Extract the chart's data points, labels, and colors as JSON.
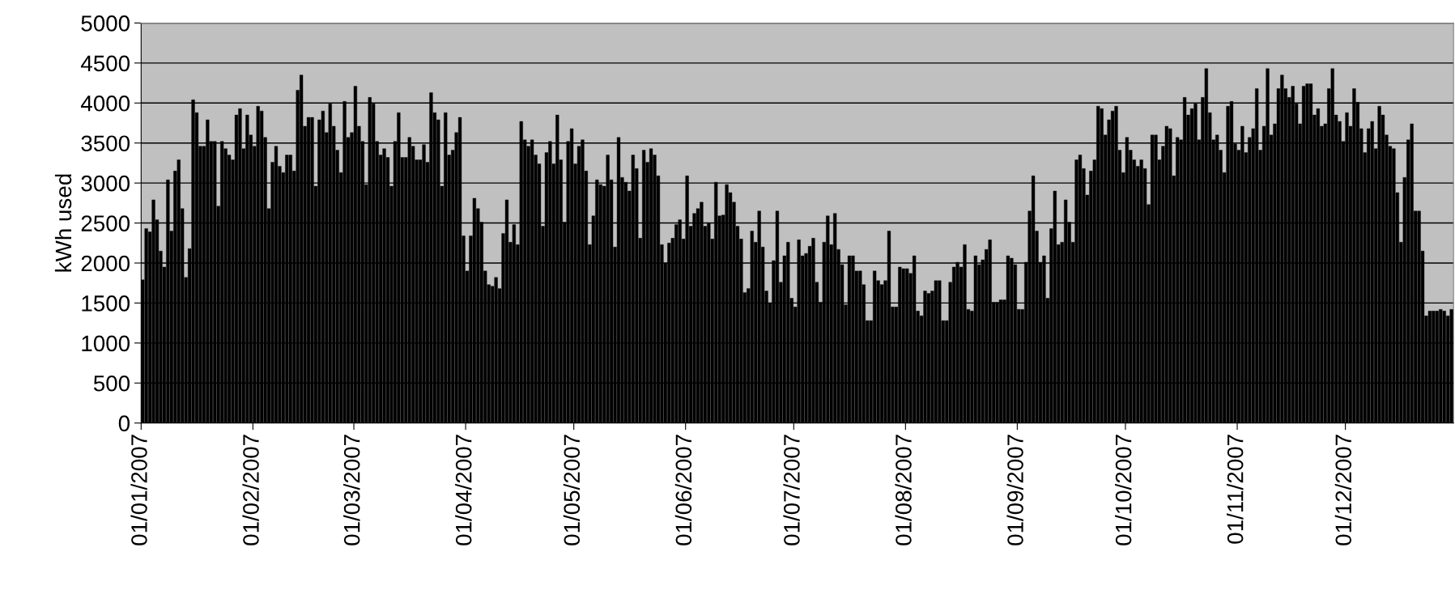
{
  "chart_data": {
    "type": "bar",
    "ylabel": "kWh used",
    "color": "#000000",
    "x": [
      "2007-01-01",
      "2007-01-02",
      "2007-01-03",
      "2007-01-04",
      "2007-01-05",
      "2007-01-06",
      "2007-01-07",
      "2007-01-08",
      "2007-01-09",
      "2007-01-10",
      "2007-01-11",
      "2007-01-12",
      "2007-01-13",
      "2007-01-14",
      "2007-01-15",
      "2007-01-16",
      "2007-01-17",
      "2007-01-18",
      "2007-01-19",
      "2007-01-20",
      "2007-01-21",
      "2007-01-22",
      "2007-01-23",
      "2007-01-24",
      "2007-01-25",
      "2007-01-26",
      "2007-01-27",
      "2007-01-28",
      "2007-01-29",
      "2007-01-30",
      "2007-01-31",
      "2007-02-01",
      "2007-02-02",
      "2007-02-03",
      "2007-02-04",
      "2007-02-05",
      "2007-02-06",
      "2007-02-07",
      "2007-02-08",
      "2007-02-09",
      "2007-02-10",
      "2007-02-11",
      "2007-02-12",
      "2007-02-13",
      "2007-02-14",
      "2007-02-15",
      "2007-02-16",
      "2007-02-17",
      "2007-02-18",
      "2007-02-19",
      "2007-02-20",
      "2007-02-21",
      "2007-02-22",
      "2007-02-23",
      "2007-02-24",
      "2007-02-25",
      "2007-02-26",
      "2007-02-27",
      "2007-02-28",
      "2007-03-01",
      "2007-03-02",
      "2007-03-03",
      "2007-03-04",
      "2007-03-05",
      "2007-03-06",
      "2007-03-07",
      "2007-03-08",
      "2007-03-09",
      "2007-03-10",
      "2007-03-11",
      "2007-03-12",
      "2007-03-13",
      "2007-03-14",
      "2007-03-15",
      "2007-03-16",
      "2007-03-17",
      "2007-03-18",
      "2007-03-19",
      "2007-03-20",
      "2007-03-21",
      "2007-03-22",
      "2007-03-23",
      "2007-03-24",
      "2007-03-25",
      "2007-03-26",
      "2007-03-27",
      "2007-03-28",
      "2007-03-29",
      "2007-03-30",
      "2007-03-31",
      "2007-04-01",
      "2007-04-02",
      "2007-04-03",
      "2007-04-04",
      "2007-04-05",
      "2007-04-06",
      "2007-04-07",
      "2007-04-08",
      "2007-04-09",
      "2007-04-10",
      "2007-04-11",
      "2007-04-12",
      "2007-04-13",
      "2007-04-14",
      "2007-04-15",
      "2007-04-16",
      "2007-04-17",
      "2007-04-18",
      "2007-04-19",
      "2007-04-20",
      "2007-04-21",
      "2007-04-22",
      "2007-04-23",
      "2007-04-24",
      "2007-04-25",
      "2007-04-26",
      "2007-04-27",
      "2007-04-28",
      "2007-04-29",
      "2007-04-30",
      "2007-05-01",
      "2007-05-02",
      "2007-05-03",
      "2007-05-04",
      "2007-05-05",
      "2007-05-06",
      "2007-05-07",
      "2007-05-08",
      "2007-05-09",
      "2007-05-10",
      "2007-05-11",
      "2007-05-12",
      "2007-05-13",
      "2007-05-14",
      "2007-05-15",
      "2007-05-16",
      "2007-05-17",
      "2007-05-18",
      "2007-05-19",
      "2007-05-20",
      "2007-05-21",
      "2007-05-22",
      "2007-05-23",
      "2007-05-24",
      "2007-05-25",
      "2007-05-26",
      "2007-05-27",
      "2007-05-28",
      "2007-05-29",
      "2007-05-30",
      "2007-05-31",
      "2007-06-01",
      "2007-06-02",
      "2007-06-03",
      "2007-06-04",
      "2007-06-05",
      "2007-06-06",
      "2007-06-07",
      "2007-06-08",
      "2007-06-09",
      "2007-06-10",
      "2007-06-11",
      "2007-06-12",
      "2007-06-13",
      "2007-06-14",
      "2007-06-15",
      "2007-06-16",
      "2007-06-17",
      "2007-06-18",
      "2007-06-19",
      "2007-06-20",
      "2007-06-21",
      "2007-06-22",
      "2007-06-23",
      "2007-06-24",
      "2007-06-25",
      "2007-06-26",
      "2007-06-27",
      "2007-06-28",
      "2007-06-29",
      "2007-06-30",
      "2007-07-01",
      "2007-07-02",
      "2007-07-03",
      "2007-07-04",
      "2007-07-05",
      "2007-07-06",
      "2007-07-07",
      "2007-07-08",
      "2007-07-09",
      "2007-07-10",
      "2007-07-11",
      "2007-07-12",
      "2007-07-13",
      "2007-07-14",
      "2007-07-15",
      "2007-07-16",
      "2007-07-17",
      "2007-07-18",
      "2007-07-19",
      "2007-07-20",
      "2007-07-21",
      "2007-07-22",
      "2007-07-23",
      "2007-07-24",
      "2007-07-25",
      "2007-07-26",
      "2007-07-27",
      "2007-07-28",
      "2007-07-29",
      "2007-07-30",
      "2007-07-31",
      "2007-08-01",
      "2007-08-02",
      "2007-08-03",
      "2007-08-04",
      "2007-08-05",
      "2007-08-06",
      "2007-08-07",
      "2007-08-08",
      "2007-08-09",
      "2007-08-10",
      "2007-08-11",
      "2007-08-12",
      "2007-08-13",
      "2007-08-14",
      "2007-08-15",
      "2007-08-16",
      "2007-08-17",
      "2007-08-18",
      "2007-08-19",
      "2007-08-20",
      "2007-08-21",
      "2007-08-22",
      "2007-08-23",
      "2007-08-24",
      "2007-08-25",
      "2007-08-26",
      "2007-08-27",
      "2007-08-28",
      "2007-08-29",
      "2007-08-30",
      "2007-08-31",
      "2007-09-01",
      "2007-09-02",
      "2007-09-03",
      "2007-09-04",
      "2007-09-05",
      "2007-09-06",
      "2007-09-07",
      "2007-09-08",
      "2007-09-09",
      "2007-09-10",
      "2007-09-11",
      "2007-09-12",
      "2007-09-13",
      "2007-09-14",
      "2007-09-15",
      "2007-09-16",
      "2007-09-17",
      "2007-09-18",
      "2007-09-19",
      "2007-09-20",
      "2007-09-21",
      "2007-09-22",
      "2007-09-23",
      "2007-09-24",
      "2007-09-25",
      "2007-09-26",
      "2007-09-27",
      "2007-09-28",
      "2007-09-29",
      "2007-09-30",
      "2007-10-01",
      "2007-10-02",
      "2007-10-03",
      "2007-10-04",
      "2007-10-05",
      "2007-10-06",
      "2007-10-07",
      "2007-10-08",
      "2007-10-09",
      "2007-10-10",
      "2007-10-11",
      "2007-10-12",
      "2007-10-13",
      "2007-10-14",
      "2007-10-15",
      "2007-10-16",
      "2007-10-17",
      "2007-10-18",
      "2007-10-19",
      "2007-10-20",
      "2007-10-21",
      "2007-10-22",
      "2007-10-23",
      "2007-10-24",
      "2007-10-25",
      "2007-10-26",
      "2007-10-27",
      "2007-10-28",
      "2007-10-29",
      "2007-10-30",
      "2007-10-31",
      "2007-11-01",
      "2007-11-02",
      "2007-11-03",
      "2007-11-04",
      "2007-11-05",
      "2007-11-06",
      "2007-11-07",
      "2007-11-08",
      "2007-11-09",
      "2007-11-10",
      "2007-11-11",
      "2007-11-12",
      "2007-11-13",
      "2007-11-14",
      "2007-11-15",
      "2007-11-16",
      "2007-11-17",
      "2007-11-18",
      "2007-11-19",
      "2007-11-20",
      "2007-11-21",
      "2007-11-22",
      "2007-11-23",
      "2007-11-24",
      "2007-11-25",
      "2007-11-26",
      "2007-11-27",
      "2007-11-28",
      "2007-11-29",
      "2007-11-30",
      "2007-12-01",
      "2007-12-02",
      "2007-12-03",
      "2007-12-04",
      "2007-12-05",
      "2007-12-06",
      "2007-12-07",
      "2007-12-08",
      "2007-12-09",
      "2007-12-10",
      "2007-12-11",
      "2007-12-12",
      "2007-12-13",
      "2007-12-14",
      "2007-12-15",
      "2007-12-16",
      "2007-12-17",
      "2007-12-18",
      "2007-12-19",
      "2007-12-20",
      "2007-12-21",
      "2007-12-22",
      "2007-12-23",
      "2007-12-24",
      "2007-12-25",
      "2007-12-26",
      "2007-12-27",
      "2007-12-28",
      "2007-12-29",
      "2007-12-30"
    ],
    "values": [
      1790,
      2430,
      2390,
      2790,
      2540,
      2150,
      1950,
      3040,
      2400,
      3150,
      3290,
      2680,
      1820,
      2180,
      4040,
      3880,
      3460,
      3460,
      3790,
      3520,
      3520,
      2710,
      3520,
      3430,
      3350,
      3290,
      3850,
      3930,
      3430,
      3850,
      3600,
      3460,
      3960,
      3900,
      3570,
      2680,
      3260,
      3460,
      3210,
      3130,
      3350,
      3350,
      3150,
      4160,
      4350,
      3710,
      3820,
      3820,
      2960,
      3790,
      3900,
      3630,
      3990,
      3710,
      3410,
      3130,
      4020,
      3570,
      3630,
      4210,
      3710,
      3520,
      2980,
      4070,
      3990,
      3520,
      3350,
      3430,
      3320,
      2960,
      3520,
      3880,
      3320,
      3320,
      3570,
      3460,
      3290,
      3290,
      3480,
      3260,
      4130,
      3880,
      3790,
      2960,
      3880,
      3350,
      3410,
      3630,
      3820,
      2340,
      1900,
      2340,
      2810,
      2680,
      2510,
      1900,
      1730,
      1710,
      1820,
      1680,
      2370,
      2790,
      2260,
      2480,
      2230,
      3770,
      3540,
      3460,
      3540,
      3350,
      3240,
      2460,
      3380,
      3520,
      3240,
      3850,
      3290,
      2510,
      3520,
      3680,
      3240,
      3460,
      3540,
      3150,
      2230,
      2590,
      3040,
      2980,
      2960,
      3350,
      3040,
      2200,
      3570,
      3070,
      3010,
      2900,
      3350,
      3180,
      2310,
      3410,
      3260,
      3430,
      3350,
      3090,
      2230,
      2000,
      2250,
      2310,
      2480,
      2540,
      2300,
      3090,
      2460,
      2620,
      2680,
      2760,
      2460,
      2500,
      2300,
      3010,
      2590,
      2600,
      2980,
      2880,
      2760,
      2460,
      2300,
      1630,
      1680,
      2400,
      2260,
      2650,
      2200,
      1650,
      1500,
      2030,
      2650,
      1760,
      2090,
      2260,
      1560,
      1450,
      2290,
      2090,
      2120,
      2210,
      2310,
      1760,
      1510,
      2260,
      2590,
      2230,
      2620,
      2170,
      1980,
      1480,
      2090,
      2090,
      1900,
      1900,
      1730,
      1280,
      1280,
      1900,
      1780,
      1730,
      1780,
      2400,
      1450,
      1450,
      1950,
      1930,
      1930,
      1870,
      2090,
      1400,
      1340,
      1650,
      1620,
      1650,
      1780,
      1780,
      1280,
      1280,
      1760,
      1950,
      2010,
      1950,
      2230,
      1420,
      1400,
      2090,
      1980,
      2040,
      2170,
      2290,
      1510,
      1510,
      1540,
      1540,
      2090,
      2060,
      1980,
      1420,
      1420,
      2010,
      2650,
      3090,
      2400,
      2010,
      2090,
      1560,
      2430,
      2900,
      2230,
      2260,
      2790,
      2510,
      2260,
      3290,
      3350,
      3180,
      2850,
      3150,
      3290,
      3960,
      3930,
      3600,
      3790,
      3900,
      3960,
      3410,
      3130,
      3570,
      3410,
      3290,
      3210,
      3290,
      3180,
      2730,
      3600,
      3600,
      3290,
      3460,
      3710,
      3680,
      3090,
      3570,
      3540,
      4070,
      3850,
      3930,
      3990,
      3540,
      4070,
      4430,
      3880,
      3540,
      3600,
      3410,
      3130,
      3960,
      4020,
      3490,
      3410,
      3710,
      3380,
      3570,
      3680,
      4180,
      3410,
      3710,
      4430,
      3600,
      3740,
      4180,
      4350,
      4180,
      4070,
      4210,
      3990,
      3740,
      4210,
      4240,
      4240,
      3850,
      3930,
      3710,
      3740,
      4180,
      4430,
      3850,
      3770,
      3520,
      3880,
      3710,
      4180,
      4010,
      3680,
      3380,
      3680,
      3770,
      3430,
      3960,
      3850,
      3600,
      3460,
      3430,
      2880,
      2260,
      3070,
      3540,
      3740,
      2650,
      2650,
      2150,
      1340,
      1400,
      1400,
      1400,
      1420,
      1400,
      1340,
      1420
    ],
    "xlim": [
      "2007-01-01",
      "2007-12-31"
    ],
    "xticks": [
      {
        "value": "2007-01-01",
        "label": "01/01/2007"
      },
      {
        "value": "2007-02-01",
        "label": "01/02/2007"
      },
      {
        "value": "2007-03-01",
        "label": "01/03/2007"
      },
      {
        "value": "2007-04-01",
        "label": "01/04/2007"
      },
      {
        "value": "2007-05-01",
        "label": "01/05/2007"
      },
      {
        "value": "2007-06-01",
        "label": "01/06/2007"
      },
      {
        "value": "2007-07-01",
        "label": "01/07/2007"
      },
      {
        "value": "2007-08-01",
        "label": "01/08/2007"
      },
      {
        "value": "2007-09-01",
        "label": "01/09/2007"
      },
      {
        "value": "2007-10-01",
        "label": "01/10/2007"
      },
      {
        "value": "2007-11-01",
        "label": "01/11/2007"
      },
      {
        "value": "2007-12-01",
        "label": "01/12/2007"
      }
    ],
    "ylim": [
      0,
      5000
    ],
    "yticks": [
      0,
      500,
      1000,
      1500,
      2000,
      2500,
      3000,
      3500,
      4000,
      4500,
      5000
    ],
    "grid": "y"
  }
}
